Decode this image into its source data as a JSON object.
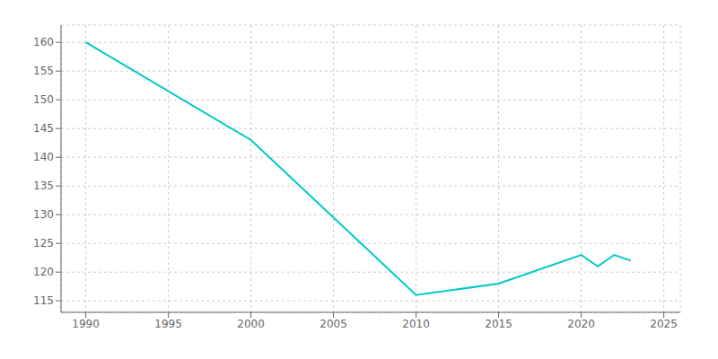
{
  "chart_data": {
    "type": "line",
    "x": [
      1990,
      2000,
      2010,
      2015,
      2020,
      2021,
      2022,
      2023
    ],
    "values": [
      160,
      143,
      116,
      118,
      123,
      121,
      123,
      122
    ],
    "color": "#00c8c8",
    "xlim": [
      1988.5,
      2026
    ],
    "ylim": [
      113,
      163
    ],
    "xticks": [
      1990,
      1995,
      2000,
      2005,
      2010,
      2015,
      2020,
      2025
    ],
    "yticks": [
      115,
      120,
      125,
      130,
      135,
      140,
      145,
      150,
      155,
      160
    ],
    "grid": true
  }
}
